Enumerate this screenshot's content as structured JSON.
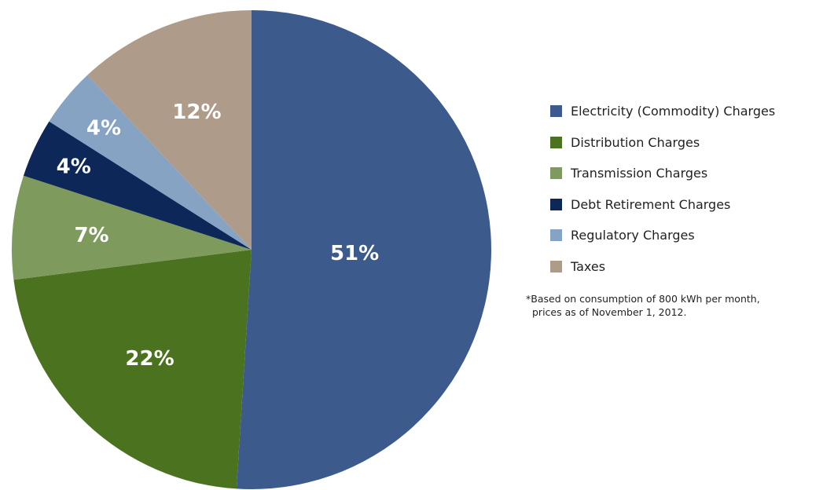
{
  "chart_data": {
    "type": "pie",
    "slices": [
      {
        "label": "Electricity (Commodity) Charges",
        "value": 51,
        "display": "51%",
        "color": "#3d5a8c"
      },
      {
        "label": "Distribution Charges",
        "value": 22,
        "display": "22%",
        "color": "#4b731f"
      },
      {
        "label": "Transmission Charges",
        "value": 7,
        "display": "7%",
        "color": "#7e9a5c"
      },
      {
        "label": "Debt Retirement Charges",
        "value": 4,
        "display": "4%",
        "color": "#0e2759"
      },
      {
        "label": "Regulatory Charges",
        "value": 4,
        "display": "4%",
        "color": "#86a3c4"
      },
      {
        "label": "Taxes",
        "value": 12,
        "display": "12%",
        "color": "#ae9b89"
      }
    ],
    "start": "12 o'clock",
    "direction": "clockwise",
    "legend_position": "right"
  },
  "footnote": {
    "line1": "*Based on consumption of 800 kWh per month,",
    "line2": "prices as of November 1, 2012."
  }
}
